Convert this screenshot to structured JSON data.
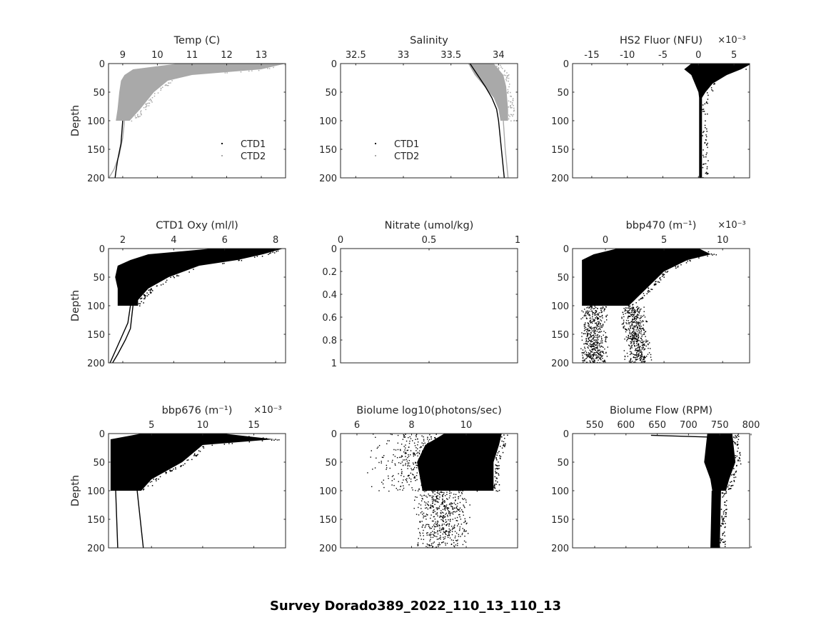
{
  "figure_title": "Survey Dorado389_2022_110_13_110_13",
  "chart_data": [
    {
      "type": "scatter",
      "title": "Temp (C)",
      "ylabel": "Depth",
      "xlim": [
        8.59,
        13.7
      ],
      "ylim": [
        0,
        200
      ],
      "xticks": [
        9,
        10,
        11,
        12,
        13
      ],
      "yticks": [
        0,
        50,
        100,
        150,
        200
      ],
      "legend": {
        "placement": "bottom-right",
        "entries": [
          {
            "label": "CTD1",
            "color": "#000000"
          },
          {
            "label": "CTD2",
            "color": "#a9a9a9"
          }
        ]
      },
      "series": [
        {
          "name": "CTD2",
          "kind": "band",
          "color": "#a9a9a9",
          "depth": [
            0,
            10,
            20,
            30,
            50,
            80,
            100
          ],
          "min": [
            10.6,
            9.3,
            9.05,
            8.95,
            8.9,
            8.85,
            8.8
          ],
          "max": [
            13.7,
            13.0,
            11.0,
            10.3,
            9.9,
            9.5,
            9.2
          ]
        },
        {
          "name": "CTD2",
          "kind": "line",
          "color": "#a9a9a9",
          "depth": [
            100,
            130,
            160,
            185,
            200
          ],
          "min": [
            9.05,
            9.0,
            8.9,
            8.75,
            8.6
          ]
        },
        {
          "name": "CTD1",
          "kind": "line",
          "color": "#000000",
          "depth": [
            100,
            140,
            170,
            190,
            200
          ],
          "min": [
            9.0,
            8.95,
            8.85,
            8.8,
            8.78
          ]
        }
      ]
    },
    {
      "type": "scatter",
      "title": "Salinity",
      "ylabel": "",
      "xlim": [
        32.34,
        34.2
      ],
      "ylim": [
        0,
        200
      ],
      "xticks": [
        32.5,
        33,
        33.5,
        34
      ],
      "xticklabels": [
        "32.5",
        "33",
        "33.5",
        "34"
      ],
      "yticks": [
        0,
        50,
        100,
        150,
        200
      ],
      "legend": {
        "placement": "bottom-center",
        "entries": [
          {
            "label": "CTD1",
            "color": "#000000"
          },
          {
            "label": "CTD2",
            "color": "#a9a9a9"
          }
        ]
      },
      "series": [
        {
          "name": "CTD2",
          "kind": "band",
          "color": "#a9a9a9",
          "depth": [
            0,
            20,
            40,
            60,
            80,
            100
          ],
          "min": [
            33.68,
            33.75,
            33.85,
            33.95,
            34.0,
            34.02
          ],
          "max": [
            33.95,
            34.05,
            34.08,
            34.09,
            34.1,
            34.1
          ]
        },
        {
          "name": "CTD1",
          "kind": "line",
          "color": "#000000",
          "depth": [
            0,
            20,
            40,
            60,
            80,
            100,
            150,
            200
          ],
          "min": [
            33.7,
            33.78,
            33.86,
            33.93,
            33.98,
            34.0,
            34.03,
            34.06
          ]
        },
        {
          "name": "CTD2",
          "kind": "line",
          "color": "#a9a9a9",
          "depth": [
            100,
            150,
            200
          ],
          "min": [
            34.05,
            34.07,
            34.1
          ]
        }
      ]
    },
    {
      "type": "scatter",
      "title": "HS2 Fluor (NFU)",
      "exponent": "×10⁻³",
      "ylabel": "",
      "xlim": [
        -17.7,
        7.2
      ],
      "ylim": [
        0,
        200
      ],
      "xticks": [
        -15,
        -10,
        -5,
        0,
        5
      ],
      "yticks": [
        0,
        50,
        100,
        150,
        200
      ],
      "series": [
        {
          "name": "HS2",
          "kind": "band",
          "color": "#000000",
          "depth": [
            0,
            10,
            20,
            35,
            50,
            60,
            200
          ],
          "min": [
            -1,
            -2,
            -1,
            -0.5,
            0,
            0.1,
            0.1
          ],
          "max": [
            7.5,
            6,
            4,
            2,
            1,
            0.5,
            0.5
          ]
        }
      ]
    },
    {
      "type": "scatter",
      "title": "CTD1 Oxy (ml/l)",
      "ylabel": "Depth",
      "xlim": [
        1.44,
        8.39
      ],
      "ylim": [
        0,
        200
      ],
      "xticks": [
        2,
        4,
        6,
        8
      ],
      "yticks": [
        0,
        50,
        100,
        150,
        200
      ],
      "series": [
        {
          "name": "CTD1",
          "kind": "band",
          "color": "#000000",
          "depth": [
            0,
            10,
            20,
            30,
            50,
            70,
            90,
            100
          ],
          "min": [
            5.5,
            3.0,
            2.3,
            1.8,
            1.7,
            1.8,
            1.8,
            1.8
          ],
          "max": [
            8.3,
            7.5,
            6.5,
            5.0,
            3.8,
            3.0,
            2.6,
            2.6
          ]
        },
        {
          "name": "CTD1",
          "kind": "line",
          "color": "#000000",
          "depth": [
            100,
            130,
            150,
            180,
            200
          ],
          "min": [
            2.3,
            2.2,
            2.0,
            1.7,
            1.5
          ]
        },
        {
          "name": "CTD1",
          "kind": "line",
          "color": "#000000",
          "depth": [
            100,
            140,
            160,
            185,
            200
          ],
          "min": [
            2.4,
            2.3,
            2.1,
            1.8,
            1.6
          ]
        }
      ]
    },
    {
      "type": "scatter",
      "title": "Nitrate (umol/kg)",
      "ylabel": "",
      "xlim": [
        0,
        1
      ],
      "ylim": [
        0,
        1
      ],
      "xticks": [
        0,
        0.5,
        1
      ],
      "yticks": [
        0,
        0.2,
        0.4,
        0.6,
        0.8,
        1
      ],
      "series": []
    },
    {
      "type": "scatter",
      "title": "bbp470 (m⁻¹)",
      "exponent": "×10⁻³",
      "ylabel": "",
      "xlim": [
        -2.8,
        12.3
      ],
      "ylim": [
        0,
        200
      ],
      "xticks": [
        0,
        5,
        10
      ],
      "yticks": [
        0,
        50,
        100,
        150,
        200
      ],
      "series": [
        {
          "name": "bbp470",
          "kind": "band",
          "color": "#000000",
          "depth": [
            0,
            10,
            20,
            40,
            60,
            100
          ],
          "min": [
            1,
            -1,
            -2,
            -2,
            -2,
            -2
          ],
          "max": [
            8,
            9,
            7,
            5,
            4,
            2
          ]
        },
        {
          "name": "bbp470",
          "kind": "scatter",
          "color": "#000000",
          "depth": [
            100,
            200
          ],
          "center": [
            -1,
            -1
          ],
          "spread": 1.2
        },
        {
          "name": "bbp470",
          "kind": "scatter",
          "color": "#000000",
          "depth": [
            100,
            200
          ],
          "center": [
            2.3,
            2.8
          ],
          "spread": 1.2
        }
      ]
    },
    {
      "type": "scatter",
      "title": "bbp676 (m⁻¹)",
      "exponent": "×10⁻³",
      "ylabel": "Depth",
      "xlim": [
        0.8,
        18.1
      ],
      "ylim": [
        0,
        200
      ],
      "xticks": [
        5,
        10,
        15
      ],
      "yticks": [
        0,
        50,
        100,
        150,
        200
      ],
      "series": [
        {
          "name": "bbp676",
          "kind": "band",
          "color": "#000000",
          "depth": [
            0,
            10,
            20,
            50,
            80,
            100
          ],
          "min": [
            4,
            1,
            1,
            1,
            1,
            1
          ],
          "max": [
            12,
            17,
            10,
            8,
            5,
            4
          ]
        },
        {
          "name": "bbp676",
          "kind": "line",
          "color": "#000000",
          "depth": [
            100,
            150,
            200
          ],
          "min": [
            1.5,
            1.6,
            1.7
          ]
        },
        {
          "name": "bbp676",
          "kind": "line",
          "color": "#000000",
          "depth": [
            100,
            150,
            200
          ],
          "min": [
            3.6,
            3.9,
            4.2
          ]
        }
      ]
    },
    {
      "type": "scatter",
      "title": "Biolume log10(photons/sec)",
      "ylabel": "",
      "xlim": [
        5.4,
        11.88
      ],
      "ylim": [
        0,
        200
      ],
      "xticks": [
        6,
        8,
        10
      ],
      "yticks": [
        0,
        50,
        100,
        150,
        200
      ],
      "series": [
        {
          "name": "biolume",
          "kind": "band",
          "color": "#000000",
          "depth": [
            0,
            20,
            50,
            100
          ],
          "min": [
            9.2,
            8.5,
            8.2,
            8.4
          ],
          "max": [
            11.3,
            11.2,
            11.0,
            11.0
          ]
        },
        {
          "name": "biolume",
          "kind": "scatter",
          "color": "#000000",
          "depth": [
            0,
            100
          ],
          "center": [
            8.5,
            8.5
          ],
          "spread": 2.2
        },
        {
          "name": "biolume",
          "kind": "scatter",
          "color": "#000000",
          "depth": [
            100,
            200
          ],
          "center": [
            9.1,
            9.1
          ],
          "spread": 1.1
        }
      ]
    },
    {
      "type": "scatter",
      "title": "Biolume Flow (RPM)",
      "ylabel": "",
      "xlim": [
        514.6,
        797.7
      ],
      "ylim": [
        0,
        200
      ],
      "xticks": [
        550,
        600,
        650,
        700,
        750,
        800
      ],
      "yticks": [
        0,
        50,
        100,
        150,
        200
      ],
      "series": [
        {
          "name": "flow",
          "kind": "band",
          "color": "#000000",
          "depth": [
            0,
            50,
            80,
            100
          ],
          "min": [
            730,
            725,
            735,
            738
          ],
          "max": [
            770,
            775,
            765,
            760
          ]
        },
        {
          "name": "flow",
          "kind": "band",
          "color": "#000000",
          "depth": [
            100,
            200
          ],
          "min": [
            737,
            735
          ],
          "max": [
            752,
            750
          ]
        },
        {
          "name": "flow",
          "kind": "line",
          "color": "#000000",
          "depth": [
            3,
            6
          ],
          "min": [
            640,
            730
          ]
        }
      ]
    }
  ]
}
